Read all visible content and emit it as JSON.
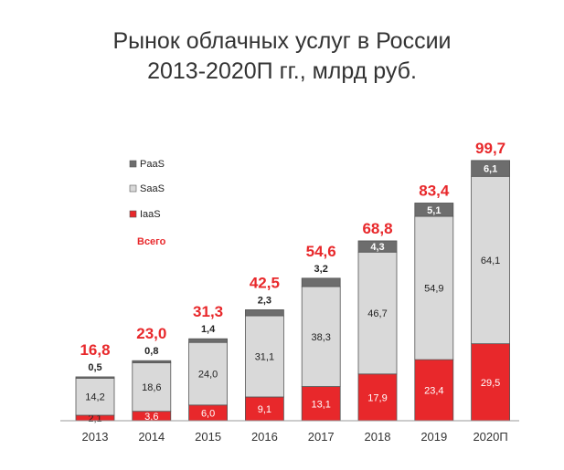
{
  "chart_data": {
    "type": "bar",
    "stacked": true,
    "title_line1": "Рынок облачных услуг в России",
    "title_line2": "2013-2020П гг., млрд руб.",
    "categories": [
      "2013",
      "2014",
      "2015",
      "2016",
      "2017",
      "2018",
      "2019",
      "2020П"
    ],
    "series": [
      {
        "name": "IaaS",
        "color": "#e8282b",
        "values": [
          2.1,
          3.6,
          6.0,
          9.1,
          13.1,
          17.9,
          23.4,
          29.5
        ],
        "labels": [
          "2,1",
          "3,6",
          "6,0",
          "9,1",
          "13,1",
          "17,9",
          "23,4",
          "29,5"
        ]
      },
      {
        "name": "SaaS",
        "color": "#d9d9d9",
        "values": [
          14.2,
          18.6,
          24.0,
          31.1,
          38.3,
          46.7,
          54.9,
          64.1
        ],
        "labels": [
          "14,2",
          "18,6",
          "24,0",
          "31,1",
          "38,3",
          "46,7",
          "54,9",
          "64,1"
        ]
      },
      {
        "name": "PaaS",
        "color": "#6d6d6d",
        "values": [
          0.5,
          0.8,
          1.4,
          2.3,
          3.2,
          4.3,
          5.1,
          6.1
        ],
        "labels": [
          "0,5",
          "0,8",
          "1,4",
          "2,3",
          "3,2",
          "4,3",
          "5,1",
          "6,1"
        ]
      }
    ],
    "totals": [
      16.8,
      23.0,
      31.3,
      42.5,
      54.6,
      68.8,
      83.4,
      99.7
    ],
    "total_labels": [
      "16,8",
      "23,0",
      "31,3",
      "42,5",
      "54,6",
      "68,8",
      "83,4",
      "99,7"
    ],
    "legend": [
      {
        "name": "PaaS",
        "color": "#6d6d6d"
      },
      {
        "name": "SaaS",
        "color": "#d9d9d9"
      },
      {
        "name": "IaaS",
        "color": "#e8282b"
      }
    ],
    "legend_total_label": "Всего",
    "legend_position": "left",
    "total_color": "#e8282b",
    "grid": false
  }
}
